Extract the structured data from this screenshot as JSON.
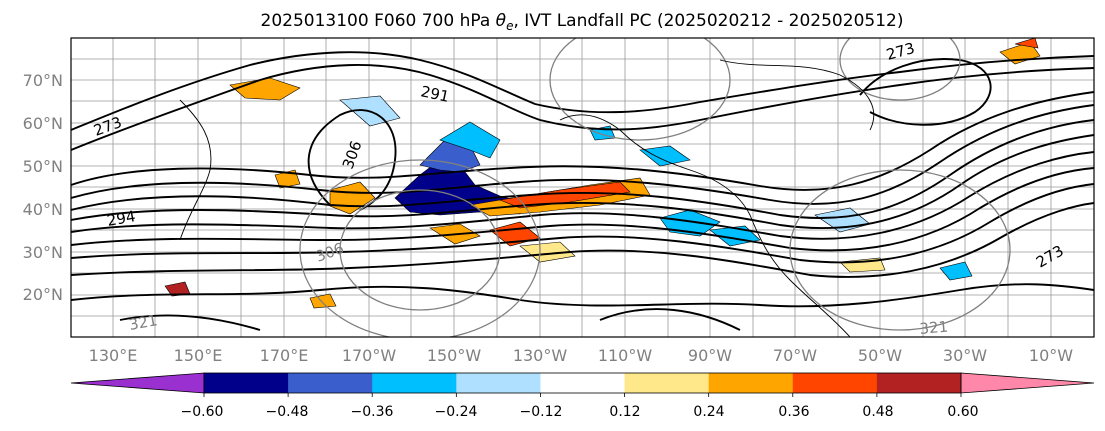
{
  "figure": {
    "title": "2025013100 F060 700 hPa θe, IVT Landfall PC (2025020212 - 2025020512)",
    "title_parts": {
      "pre": "2025013100 F060 700 hPa ",
      "theta": "θ",
      "sub": "e",
      "post": ", IVT Landfall PC (2025020212 - 2025020512)"
    }
  },
  "map": {
    "lat_ticks": [
      "70°N",
      "60°N",
      "50°N",
      "40°N",
      "30°N",
      "20°N"
    ],
    "lon_ticks": [
      "130°E",
      "150°E",
      "170°E",
      "170°W",
      "150°W",
      "130°W",
      "110°W",
      "90°W",
      "70°W",
      "50°W",
      "30°W",
      "10°W"
    ],
    "contour_labels": [
      {
        "text": "291",
        "color": "#000000"
      },
      {
        "text": "273",
        "color": "#000000"
      },
      {
        "text": "294",
        "color": "#000000"
      },
      {
        "text": "273",
        "color": "#000000"
      },
      {
        "text": "306",
        "color": "#000000"
      },
      {
        "text": "306",
        "color": "#808080"
      },
      {
        "text": "273",
        "color": "#000000"
      },
      {
        "text": "321",
        "color": "#808080"
      },
      {
        "text": "321",
        "color": "#808080"
      }
    ]
  },
  "colorbar": {
    "tick_labels": [
      "−0.60",
      "−0.48",
      "−0.36",
      "−0.24",
      "−0.12",
      "0.12",
      "0.24",
      "0.36",
      "0.48",
      "0.60"
    ],
    "bounds": [
      -0.6,
      -0.48,
      -0.36,
      -0.24,
      -0.12,
      0.12,
      0.24,
      0.36,
      0.48,
      0.6
    ],
    "colors": [
      "#9b30d0",
      "#00008b",
      "#3a5fcd",
      "#00bfff",
      "#b0e0ff",
      "#ffffff",
      "#ffe88a",
      "#ffa500",
      "#ff4500",
      "#b22222",
      "#ff88aa"
    ],
    "extend": "both"
  },
  "chart_data": {
    "type": "heatmap",
    "title": "2025013100 F060 700 hPa θe, IVT Landfall PC (2025020212 - 2025020512)",
    "xlabel": "",
    "ylabel": "",
    "x_ticks": [
      "130°E",
      "150°E",
      "170°E",
      "170°W",
      "150°W",
      "130°W",
      "110°W",
      "90°W",
      "70°W",
      "50°W",
      "30°W",
      "10°W"
    ],
    "y_ticks": [
      "70°N",
      "60°N",
      "50°N",
      "40°N",
      "30°N",
      "20°N"
    ],
    "colorbar_levels": [
      -0.6,
      -0.48,
      -0.36,
      -0.24,
      -0.12,
      0.12,
      0.24,
      0.36,
      0.48,
      0.6
    ],
    "contour_levels_labeled": [
      273,
      291,
      294,
      306,
      321
    ]
  }
}
